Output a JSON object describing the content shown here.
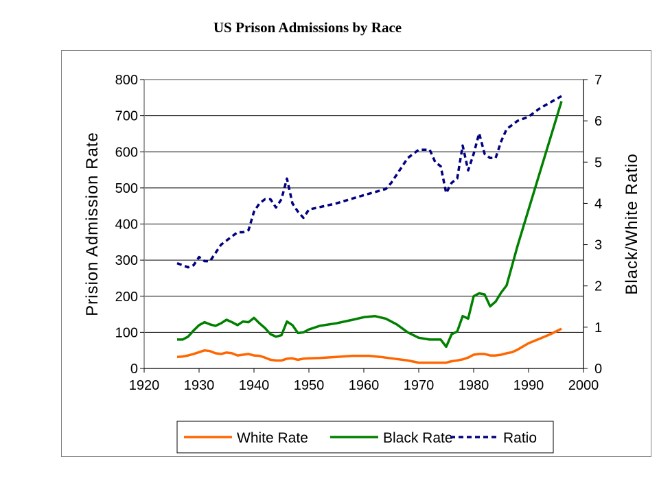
{
  "chart_data": {
    "type": "line",
    "title": "US Prison Admissions by Race",
    "xlabel": "",
    "ylabel": "Prision Admission Rate",
    "y2label": "Black/White Ratio",
    "xlim": [
      1920,
      2000
    ],
    "ylim": [
      0,
      800
    ],
    "y2lim": [
      0,
      7
    ],
    "xticks": [
      "1920",
      "1930",
      "1940",
      "1950",
      "1960",
      "1970",
      "1980",
      "1990",
      "2000"
    ],
    "yticks": [
      "0",
      "100",
      "200",
      "300",
      "400",
      "500",
      "600",
      "700",
      "800"
    ],
    "y2ticks": [
      "0",
      "1",
      "2",
      "3",
      "4",
      "5",
      "6",
      "7"
    ],
    "grid": "horizontal",
    "legend": "bottom",
    "series": [
      {
        "name": "White Rate",
        "axis": "left",
        "color": "#ff6600",
        "style": "solid",
        "x": [
          1926,
          1927,
          1928,
          1929,
          1930,
          1931,
          1932,
          1933,
          1934,
          1935,
          1936,
          1937,
          1938,
          1939,
          1940,
          1941,
          1942,
          1943,
          1944,
          1945,
          1946,
          1947,
          1948,
          1949,
          1950,
          1952,
          1955,
          1958,
          1961,
          1963,
          1966,
          1968,
          1970,
          1972,
          1974,
          1975,
          1976,
          1977,
          1978,
          1979,
          1980,
          1981,
          1982,
          1983,
          1984,
          1985,
          1986,
          1987,
          1988,
          1990,
          1992,
          1994,
          1996
        ],
        "y": [
          32,
          33,
          36,
          40,
          45,
          50,
          48,
          42,
          40,
          44,
          42,
          36,
          38,
          40,
          36,
          35,
          30,
          24,
          22,
          22,
          27,
          28,
          24,
          27,
          28,
          29,
          32,
          35,
          35,
          32,
          26,
          22,
          16,
          16,
          16,
          16,
          20,
          22,
          25,
          30,
          38,
          40,
          40,
          36,
          36,
          38,
          42,
          45,
          52,
          70,
          82,
          95,
          110
        ]
      },
      {
        "name": "Black Rate",
        "axis": "left",
        "color": "#008000",
        "style": "solid",
        "x": [
          1926,
          1927,
          1928,
          1929,
          1930,
          1931,
          1932,
          1933,
          1934,
          1935,
          1936,
          1937,
          1938,
          1939,
          1940,
          1941,
          1942,
          1943,
          1944,
          1945,
          1946,
          1947,
          1948,
          1949,
          1950,
          1952,
          1955,
          1958,
          1960,
          1962,
          1964,
          1966,
          1968,
          1970,
          1972,
          1974,
          1975,
          1976,
          1977,
          1978,
          1979,
          1980,
          1981,
          1982,
          1983,
          1984,
          1985,
          1986,
          1988,
          1990,
          1992,
          1994,
          1996
        ],
        "y": [
          80,
          80,
          88,
          105,
          120,
          128,
          122,
          118,
          125,
          135,
          128,
          120,
          130,
          128,
          140,
          125,
          112,
          95,
          88,
          92,
          130,
          120,
          98,
          100,
          108,
          118,
          125,
          135,
          142,
          145,
          138,
          122,
          100,
          85,
          80,
          80,
          60,
          95,
          102,
          145,
          138,
          200,
          208,
          205,
          172,
          185,
          210,
          230,
          340,
          440,
          540,
          640,
          740
        ]
      },
      {
        "name": "Ratio",
        "axis": "right",
        "color": "#000080",
        "style": "dashed",
        "x": [
          1926,
          1927,
          1928,
          1929,
          1930,
          1931,
          1932,
          1933,
          1934,
          1935,
          1936,
          1937,
          1938,
          1939,
          1940,
          1941,
          1942,
          1943,
          1944,
          1945,
          1946,
          1947,
          1948,
          1949,
          1950,
          1955,
          1960,
          1964,
          1965,
          1968,
          1970,
          1972,
          1973,
          1974,
          1975,
          1976,
          1977,
          1978,
          1979,
          1980,
          1981,
          1982,
          1983,
          1984,
          1985,
          1986,
          1988,
          1990,
          1992,
          1994,
          1996
        ],
        "y": [
          2.55,
          2.5,
          2.45,
          2.5,
          2.7,
          2.6,
          2.6,
          2.8,
          3.0,
          3.1,
          3.2,
          3.3,
          3.3,
          3.35,
          3.8,
          4.0,
          4.1,
          4.1,
          3.9,
          4.1,
          4.6,
          4.0,
          3.8,
          3.65,
          3.85,
          4.0,
          4.2,
          4.35,
          4.5,
          5.1,
          5.3,
          5.3,
          5.0,
          4.9,
          4.25,
          4.5,
          4.6,
          5.4,
          4.8,
          5.2,
          5.7,
          5.2,
          5.1,
          5.1,
          5.5,
          5.8,
          6.0,
          6.1,
          6.3,
          6.45,
          6.6
        ]
      }
    ]
  }
}
